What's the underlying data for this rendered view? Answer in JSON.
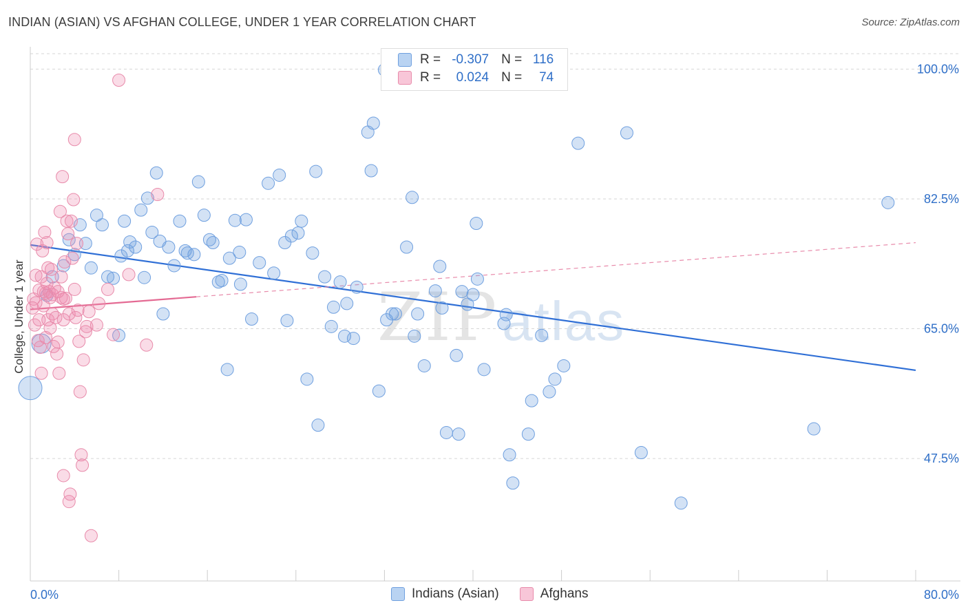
{
  "title": "INDIAN (ASIAN) VS AFGHAN COLLEGE, UNDER 1 YEAR CORRELATION CHART",
  "source": "Source: ZipAtlas.com",
  "watermark": {
    "zip": "ZIP",
    "atlas": "atlas"
  },
  "legend": {
    "r_label": "R =",
    "n_label": "N =",
    "series": [
      {
        "name": "Indians (Asian)",
        "r": "-0.307",
        "n": "116",
        "color": "#6e9fdf",
        "fill": "#b9d3f2"
      },
      {
        "name": "Afghans",
        "r": "0.024",
        "n": "74",
        "color": "#e88aaa",
        "fill": "#f8c6d8"
      }
    ]
  },
  "chart_data": {
    "type": "scatter",
    "title": "INDIAN (ASIAN) VS AFGHAN COLLEGE, UNDER 1 YEAR CORRELATION CHART",
    "xlabel": "",
    "ylabel": "College, Under 1 year",
    "xlim": [
      0,
      80
    ],
    "ylim": [
      31,
      103
    ],
    "x_tick_labels": [
      "0.0%",
      "80.0%"
    ],
    "y_ticks": [
      47.5,
      65.0,
      82.5,
      100.0
    ],
    "y_tick_labels": [
      "47.5%",
      "65.0%",
      "82.5%",
      "100.0%"
    ],
    "grid": true,
    "series": [
      {
        "name": "Indians (Asian)",
        "color": "#4a86d8",
        "trend": {
          "x": [
            0,
            80
          ],
          "y": [
            76.3,
            59.4
          ],
          "style": "solid"
        },
        "points": [
          [
            1.0,
            63.0
          ],
          [
            0.0,
            57.0
          ],
          [
            1.5,
            69.5
          ],
          [
            2.0,
            72.0
          ],
          [
            3.0,
            73.5
          ],
          [
            3.5,
            77.0
          ],
          [
            4.0,
            75.0
          ],
          [
            4.5,
            79.0
          ],
          [
            5.0,
            76.5
          ],
          [
            5.5,
            73.2
          ],
          [
            6.0,
            80.3
          ],
          [
            6.5,
            79.0
          ],
          [
            7.0,
            72.0
          ],
          [
            7.5,
            71.8
          ],
          [
            8.0,
            64.1
          ],
          [
            8.2,
            74.8
          ],
          [
            8.5,
            79.5
          ],
          [
            8.8,
            75.5
          ],
          [
            9.0,
            76.7
          ],
          [
            9.5,
            76.0
          ],
          [
            10.0,
            81.0
          ],
          [
            10.3,
            71.9
          ],
          [
            10.6,
            82.6
          ],
          [
            11.0,
            78.0
          ],
          [
            11.4,
            86.0
          ],
          [
            11.7,
            76.8
          ],
          [
            12.0,
            67.0
          ],
          [
            12.5,
            76.0
          ],
          [
            13.0,
            73.5
          ],
          [
            13.5,
            79.5
          ],
          [
            14.0,
            75.5
          ],
          [
            14.2,
            75.2
          ],
          [
            14.8,
            75.0
          ],
          [
            15.2,
            84.8
          ],
          [
            15.7,
            80.3
          ],
          [
            16.2,
            77.0
          ],
          [
            16.5,
            76.6
          ],
          [
            17.0,
            71.3
          ],
          [
            17.3,
            71.5
          ],
          [
            17.8,
            59.5
          ],
          [
            18.0,
            74.5
          ],
          [
            18.5,
            79.6
          ],
          [
            18.9,
            75.3
          ],
          [
            19.0,
            71.0
          ],
          [
            19.5,
            79.7
          ],
          [
            20.0,
            66.3
          ],
          [
            20.7,
            73.9
          ],
          [
            21.5,
            84.6
          ],
          [
            22.0,
            72.5
          ],
          [
            22.5,
            85.7
          ],
          [
            23.0,
            76.6
          ],
          [
            23.2,
            66.1
          ],
          [
            23.6,
            77.5
          ],
          [
            24.2,
            77.9
          ],
          [
            24.5,
            79.5
          ],
          [
            25.0,
            58.2
          ],
          [
            25.5,
            75.2
          ],
          [
            25.8,
            86.2
          ],
          [
            26.0,
            52.0
          ],
          [
            26.6,
            72.0
          ],
          [
            27.2,
            65.3
          ],
          [
            27.4,
            67.9
          ],
          [
            28.0,
            71.3
          ],
          [
            28.4,
            64.0
          ],
          [
            28.6,
            68.4
          ],
          [
            29.2,
            63.7
          ],
          [
            29.5,
            70.6
          ],
          [
            30.5,
            91.5
          ],
          [
            30.8,
            86.3
          ],
          [
            31.0,
            92.7
          ],
          [
            31.5,
            56.6
          ],
          [
            32.0,
            99.9
          ],
          [
            32.2,
            66.2
          ],
          [
            32.7,
            67.0
          ],
          [
            33.0,
            67.0
          ],
          [
            34.0,
            76.0
          ],
          [
            34.5,
            82.7
          ],
          [
            34.7,
            64.0
          ],
          [
            35.0,
            67.0
          ],
          [
            35.6,
            60.0
          ],
          [
            36.6,
            70.1
          ],
          [
            37.0,
            73.4
          ],
          [
            37.2,
            67.8
          ],
          [
            37.6,
            51.0
          ],
          [
            38.5,
            61.4
          ],
          [
            38.7,
            50.8
          ],
          [
            39.0,
            70.0
          ],
          [
            39.5,
            68.3
          ],
          [
            40.0,
            69.6
          ],
          [
            40.3,
            79.2
          ],
          [
            40.4,
            71.7
          ],
          [
            41.0,
            59.5
          ],
          [
            42.8,
            65.7
          ],
          [
            43.0,
            66.9
          ],
          [
            43.3,
            48.0
          ],
          [
            43.6,
            44.2
          ],
          [
            45.0,
            50.8
          ],
          [
            45.3,
            55.3
          ],
          [
            46.2,
            64.1
          ],
          [
            46.9,
            56.5
          ],
          [
            47.4,
            58.2
          ],
          [
            48.2,
            60.0
          ],
          [
            49.5,
            90.0
          ],
          [
            53.9,
            91.4
          ],
          [
            55.2,
            48.3
          ],
          [
            58.8,
            41.5
          ],
          [
            70.8,
            51.5
          ],
          [
            77.5,
            82.0
          ]
        ]
      },
      {
        "name": "Afghans",
        "color": "#e46a93",
        "trend": {
          "x": [
            0,
            15
          ],
          "y": [
            67.6,
            69.3
          ],
          "style": "solid"
        },
        "trend_extended": {
          "x": [
            15,
            80
          ],
          "y": [
            69.3,
            76.6
          ],
          "style": "dashed"
        },
        "points": [
          [
            0.3,
            69.0
          ],
          [
            0.4,
            65.5
          ],
          [
            0.5,
            72.2
          ],
          [
            0.5,
            68.5
          ],
          [
            0.6,
            76.4
          ],
          [
            0.7,
            63.4
          ],
          [
            0.8,
            70.2
          ],
          [
            0.8,
            66.2
          ],
          [
            0.9,
            62.5
          ],
          [
            1.0,
            72.0
          ],
          [
            1.0,
            59.0
          ],
          [
            1.1,
            75.5
          ],
          [
            1.2,
            70.0
          ],
          [
            1.2,
            68.1
          ],
          [
            1.3,
            78.0
          ],
          [
            1.4,
            69.8
          ],
          [
            1.4,
            63.8
          ],
          [
            1.5,
            76.6
          ],
          [
            1.5,
            71.1
          ],
          [
            1.6,
            66.2
          ],
          [
            1.7,
            70.0
          ],
          [
            1.8,
            69.2
          ],
          [
            1.8,
            65.1
          ],
          [
            1.9,
            73.0
          ],
          [
            2.0,
            69.6
          ],
          [
            2.0,
            67.0
          ],
          [
            2.1,
            62.6
          ],
          [
            2.2,
            70.5
          ],
          [
            2.3,
            66.5
          ],
          [
            2.4,
            61.6
          ],
          [
            2.5,
            63.2
          ],
          [
            2.6,
            59.0
          ],
          [
            2.7,
            80.8
          ],
          [
            2.8,
            72.0
          ],
          [
            2.8,
            69.2
          ],
          [
            2.9,
            85.5
          ],
          [
            3.0,
            66.2
          ],
          [
            3.0,
            45.2
          ],
          [
            3.1,
            74.0
          ],
          [
            3.2,
            69.1
          ],
          [
            3.3,
            79.5
          ],
          [
            3.4,
            77.8
          ],
          [
            3.5,
            67.0
          ],
          [
            3.5,
            41.7
          ],
          [
            3.6,
            42.7
          ],
          [
            3.7,
            79.5
          ],
          [
            3.8,
            74.5
          ],
          [
            3.9,
            82.4
          ],
          [
            4.0,
            90.5
          ],
          [
            4.0,
            70.3
          ],
          [
            4.1,
            66.5
          ],
          [
            4.2,
            76.5
          ],
          [
            4.3,
            67.5
          ],
          [
            4.4,
            63.3
          ],
          [
            4.5,
            56.5
          ],
          [
            4.6,
            48.0
          ],
          [
            4.7,
            46.6
          ],
          [
            4.8,
            60.8
          ],
          [
            5.0,
            64.6
          ],
          [
            5.1,
            65.3
          ],
          [
            5.3,
            67.3
          ],
          [
            5.5,
            37.1
          ],
          [
            6.0,
            65.5
          ],
          [
            6.2,
            68.4
          ],
          [
            7.0,
            70.3
          ],
          [
            7.5,
            64.2
          ],
          [
            8.0,
            98.5
          ],
          [
            8.9,
            72.3
          ],
          [
            10.5,
            62.8
          ],
          [
            11.5,
            83.1
          ],
          [
            0.2,
            67.8
          ],
          [
            1.6,
            73.2
          ],
          [
            2.5,
            70.0
          ],
          [
            3.0,
            69.0
          ]
        ]
      }
    ]
  }
}
